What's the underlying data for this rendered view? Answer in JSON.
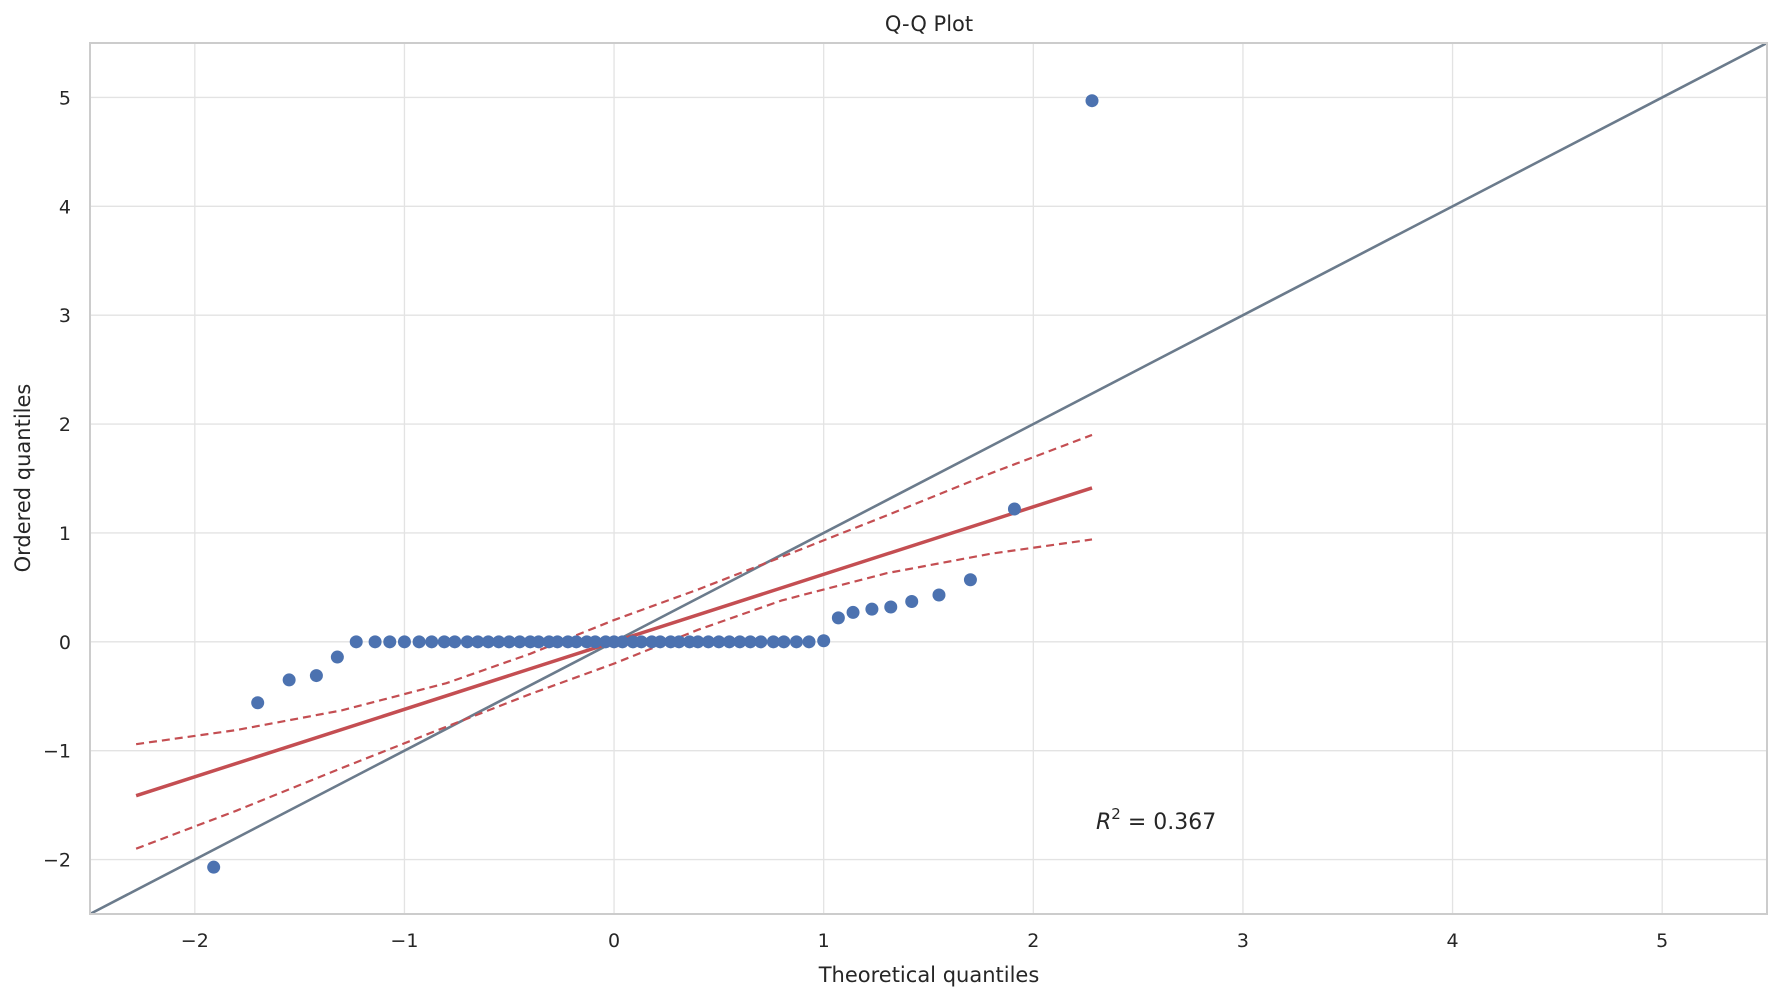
{
  "chart_data": {
    "type": "scatter",
    "title": "Q-Q Plot",
    "xlabel": "Theoretical quantiles",
    "ylabel": "Ordered quantiles",
    "xlim": [
      -2.5,
      5.5
    ],
    "ylim": [
      -2.5,
      5.5
    ],
    "xticks": [
      -2,
      -1,
      0,
      1,
      2,
      3,
      4,
      5
    ],
    "yticks": [
      -2,
      -1,
      0,
      1,
      2,
      3,
      4,
      5
    ],
    "xtick_labels": [
      "−2",
      "−1",
      "0",
      "1",
      "2",
      "3",
      "4",
      "5"
    ],
    "ytick_labels": [
      "−2",
      "−1",
      "0",
      "1",
      "2",
      "3",
      "4",
      "5"
    ],
    "grid": true,
    "colors": {
      "points": "#4c72b0",
      "fit": "#c44e52",
      "reference": "#6b7b8c",
      "grid": "#e3e3e3",
      "frame": "#cccccc"
    },
    "points": {
      "x": [
        -1.91,
        -1.7,
        -1.55,
        -1.42,
        -1.32,
        -1.23,
        -1.14,
        -1.07,
        -1.0,
        -0.93,
        -0.87,
        -0.81,
        -0.76,
        -0.7,
        -0.65,
        -0.6,
        -0.55,
        -0.5,
        -0.45,
        -0.4,
        -0.36,
        -0.31,
        -0.27,
        -0.22,
        -0.18,
        -0.13,
        -0.09,
        -0.04,
        0.0,
        0.04,
        0.09,
        0.13,
        0.18,
        0.22,
        0.27,
        0.31,
        0.36,
        0.4,
        0.45,
        0.5,
        0.55,
        0.6,
        0.65,
        0.7,
        0.76,
        0.81,
        0.87,
        0.93,
        1.0,
        1.07,
        1.14,
        1.23,
        1.32,
        1.42,
        1.55,
        1.7,
        1.91,
        2.28
      ],
      "y": [
        -2.07,
        -0.56,
        -0.35,
        -0.31,
        -0.14,
        0.0,
        0.0,
        0.0,
        0.0,
        0.0,
        0.0,
        0.0,
        0.0,
        0.0,
        0.0,
        0.0,
        0.0,
        0.0,
        0.0,
        0.0,
        0.0,
        0.0,
        0.0,
        0.0,
        0.0,
        0.0,
        0.0,
        0.0,
        0.0,
        0.0,
        0.0,
        0.0,
        0.0,
        0.0,
        0.0,
        0.0,
        0.0,
        0.0,
        0.0,
        0.0,
        0.0,
        0.0,
        0.0,
        0.0,
        0.0,
        0.0,
        0.0,
        0.0,
        0.01,
        0.22,
        0.27,
        0.3,
        0.32,
        0.37,
        0.43,
        0.57,
        1.22,
        4.97
      ]
    },
    "reference_line": {
      "name": "y = x",
      "x": [
        -2.5,
        5.5
      ],
      "y": [
        -2.5,
        5.5
      ]
    },
    "fit_line": {
      "slope": 0.62,
      "intercept": 0.0,
      "x": [
        -2.28,
        2.28
      ]
    },
    "confidence_band": {
      "x": [
        -2.28,
        -1.8,
        -1.3,
        -0.8,
        -0.4,
        0.0,
        0.4,
        0.8,
        1.3,
        1.8,
        2.28
      ],
      "upper": [
        -0.94,
        -0.81,
        -0.63,
        -0.38,
        -0.11,
        0.2,
        0.48,
        0.78,
        1.16,
        1.55,
        1.9
      ],
      "lower": [
        -1.9,
        -1.55,
        -1.16,
        -0.78,
        -0.48,
        -0.2,
        0.11,
        0.38,
        0.63,
        0.81,
        0.94
      ]
    },
    "annotation": {
      "text": "R² = 0.367",
      "base": "R",
      "sup": "2",
      "rest": " = 0.367",
      "x": 2.29,
      "y": -1.65
    }
  }
}
